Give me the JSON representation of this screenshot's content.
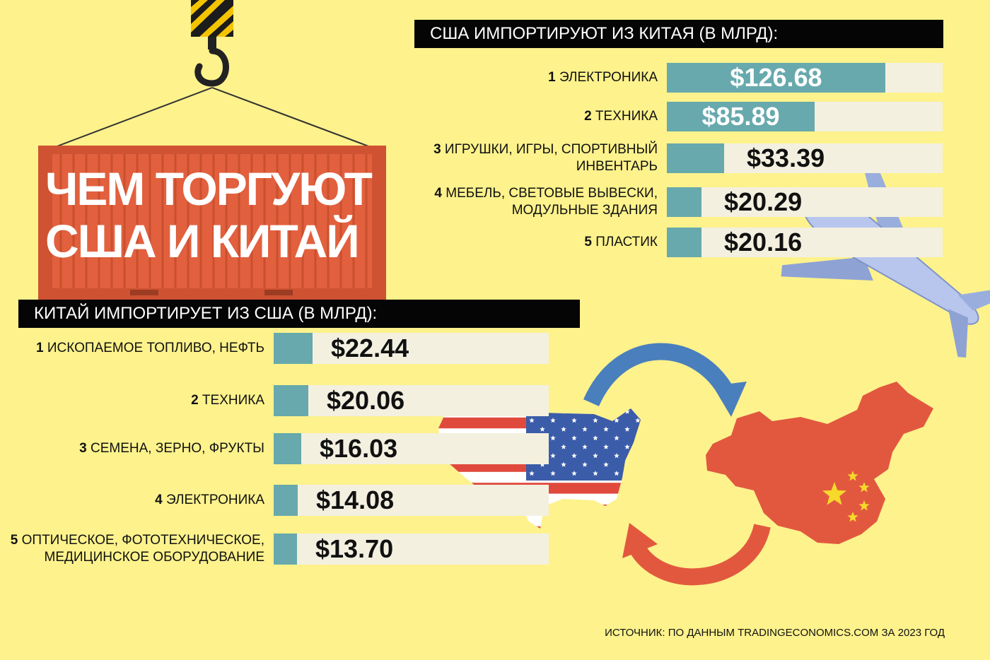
{
  "title_lines": [
    "ЧЕМ ТОРГУЮТ",
    "США И КИТАЙ"
  ],
  "source": "ИСТОЧНИК: ПО ДАННЫМ TRADINGECONOMICS.COM ЗА 2023 ГОД",
  "colors": {
    "background": "#fdf28c",
    "bar_fill": "#67a9ad",
    "bar_track": "#f3f0e0",
    "header_bg": "#050505",
    "container": "#e2603e",
    "arrow_blue": "#4a7fbd",
    "arrow_red": "#e2583f"
  },
  "chart_data": [
    {
      "type": "bar",
      "orientation": "horizontal",
      "title": "США ИМПОРТИРУЮТ ИЗ КИТАЯ (В МЛРД):",
      "unit": "млрд $",
      "xlim": [
        0,
        160
      ],
      "categories": [
        {
          "rank": "1",
          "lines": [
            "ЭЛЕКТРОНИКА"
          ]
        },
        {
          "rank": "2",
          "lines": [
            "ТЕХНИКА"
          ]
        },
        {
          "rank": "3",
          "lines": [
            "ИГРУШКИ, ИГРЫ, СПОРТИВНЫЙ",
            "ИНВЕНТАРЬ"
          ]
        },
        {
          "rank": "4",
          "lines": [
            "МЕБЕЛЬ, СВЕТОВЫЕ ВЫВЕСКИ,",
            "МОДУЛЬНЫЕ ЗДАНИЯ"
          ]
        },
        {
          "rank": "5",
          "lines": [
            "ПЛАСТИК"
          ]
        }
      ],
      "values": [
        126.68,
        85.89,
        33.39,
        20.29,
        20.16
      ],
      "value_labels": [
        "$126.68",
        "$85.89",
        "$33.39",
        "$20.29",
        "$20.16"
      ]
    },
    {
      "type": "bar",
      "orientation": "horizontal",
      "title": "КИТАЙ ИМПОРТИРУЕТ ИЗ США (В МЛРД):",
      "unit": "млрд $",
      "xlim": [
        0,
        160
      ],
      "categories": [
        {
          "rank": "1",
          "lines": [
            "ИСКОПАЕМОЕ ТОПЛИВО, НЕФТЬ"
          ]
        },
        {
          "rank": "2",
          "lines": [
            "ТЕХНИКА"
          ]
        },
        {
          "rank": "3",
          "lines": [
            "СЕМЕНА, ЗЕРНО, ФРУКТЫ"
          ]
        },
        {
          "rank": "4",
          "lines": [
            "ЭЛЕКТРОНИКА"
          ]
        },
        {
          "rank": "5",
          "lines": [
            "ОПТИЧЕСКОЕ, ФОТОТЕХНИЧЕСКОЕ,",
            "МЕДИЦИНСКОЕ ОБОРУДОВАНИЕ"
          ]
        }
      ],
      "values": [
        22.44,
        20.06,
        16.03,
        14.08,
        13.7
      ],
      "value_labels": [
        "$22.44",
        "$20.06",
        "$16.03",
        "$14.08",
        "$13.70"
      ]
    }
  ]
}
